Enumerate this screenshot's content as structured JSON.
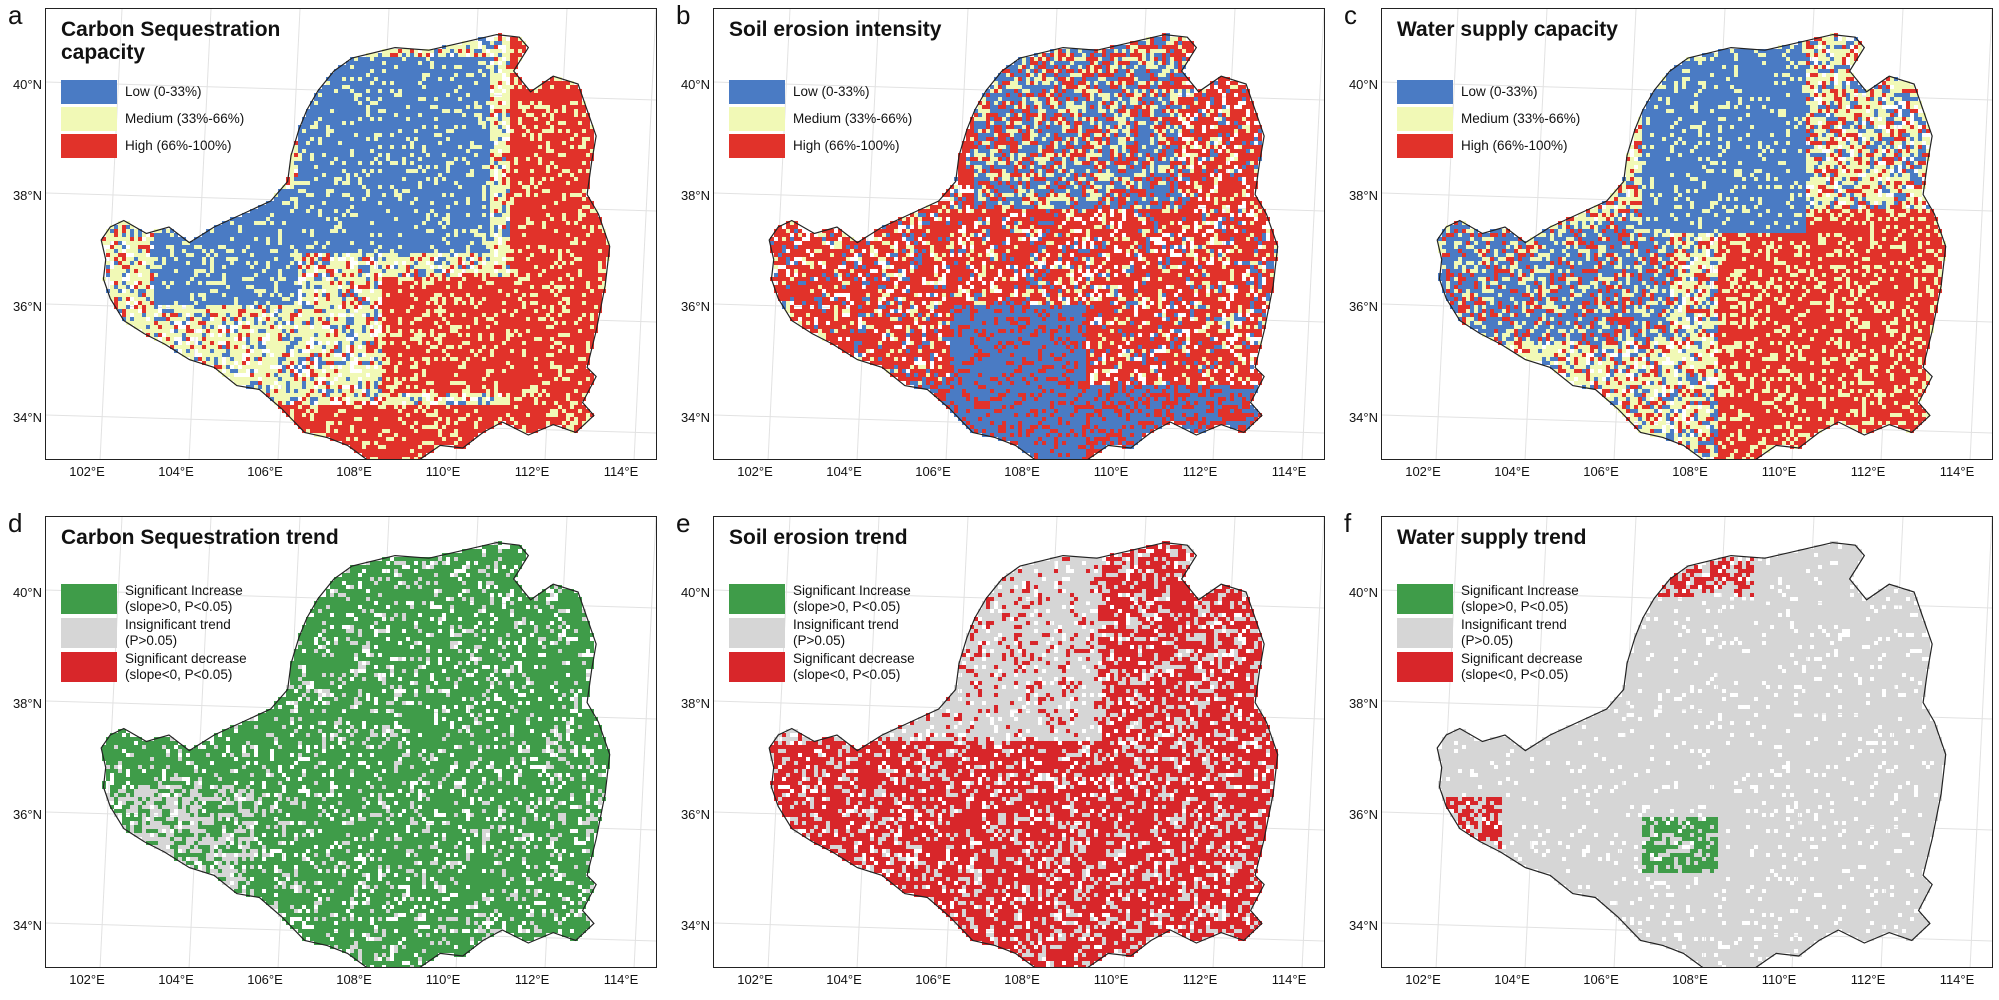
{
  "colors": {
    "low_blue": "#4a7bc4",
    "medium_yellow": "#f1f9b6",
    "high_red": "#e1322a",
    "increase_green": "#3f9c49",
    "insignificant_gray": "#d6d6d6",
    "decrease_red": "#d8262a",
    "outline": "#222222"
  },
  "latitude_labels": [
    "40°N",
    "38°N",
    "36°N",
    "34°N"
  ],
  "longitude_labels": [
    "102°E",
    "104°E",
    "106°E",
    "108°E",
    "110°E",
    "112°E",
    "114°E"
  ],
  "panels": [
    {
      "letter": "a",
      "title": "Carbon Sequestration capacity",
      "legend": [
        {
          "label": "Low (0-33%)",
          "color": "#4a7bc4"
        },
        {
          "label": "Medium (33%-66%)",
          "color": "#f1f9b6"
        },
        {
          "label": "High (66%-100%)",
          "color": "#e1322a"
        }
      ]
    },
    {
      "letter": "b",
      "title": "Soil erosion intensity",
      "legend": [
        {
          "label": "Low (0-33%)",
          "color": "#4a7bc4"
        },
        {
          "label": "Medium (33%-66%)",
          "color": "#f1f9b6"
        },
        {
          "label": "High (66%-100%)",
          "color": "#e1322a"
        }
      ]
    },
    {
      "letter": "c",
      "title": "Water supply capacity",
      "legend": [
        {
          "label": "Low (0-33%)",
          "color": "#4a7bc4"
        },
        {
          "label": "Medium (33%-66%)",
          "color": "#f1f9b6"
        },
        {
          "label": "High (66%-100%)",
          "color": "#e1322a"
        }
      ]
    },
    {
      "letter": "d",
      "title": "Carbon Sequestration trend",
      "legend": [
        {
          "label": "Significant Increase (slope>0, P<0.05)",
          "color": "#3f9c49"
        },
        {
          "label": "Insignificant trend (P>0.05)",
          "color": "#d6d6d6"
        },
        {
          "label": "Significant decrease (slope<0, P<0.05)",
          "color": "#d8262a"
        }
      ]
    },
    {
      "letter": "e",
      "title": "Soil erosion trend",
      "legend": [
        {
          "label": "Significant Increase (slope>0, P<0.05)",
          "color": "#3f9c49"
        },
        {
          "label": "Insignificant trend (P>0.05)",
          "color": "#d6d6d6"
        },
        {
          "label": "Significant decrease (slope<0, P<0.05)",
          "color": "#d8262a"
        }
      ]
    },
    {
      "letter": "f",
      "title": "Water supply trend",
      "legend": [
        {
          "label": "Significant Increase (slope>0, P<0.05)",
          "color": "#3f9c49"
        },
        {
          "label": "Insignificant trend (P>0.05)",
          "color": "#d6d6d6"
        },
        {
          "label": "Significant decrease (slope<0, P<0.05)",
          "color": "#d8262a"
        }
      ]
    }
  ]
}
